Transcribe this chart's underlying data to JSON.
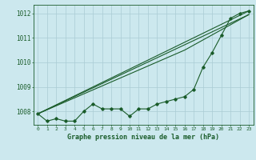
{
  "title": "Graphe pression niveau de la mer (hPa)",
  "xlim": [
    -0.5,
    23.5
  ],
  "ylim": [
    1007.45,
    1012.35
  ],
  "yticks": [
    1008,
    1009,
    1010,
    1011,
    1012
  ],
  "xticks": [
    0,
    1,
    2,
    3,
    4,
    5,
    6,
    7,
    8,
    9,
    10,
    11,
    12,
    13,
    14,
    15,
    16,
    17,
    18,
    19,
    20,
    21,
    22,
    23
  ],
  "bg_color": "#cce8ee",
  "grid_color": "#aaccd4",
  "line_color": "#1a5c2a",
  "line1_x": [
    0,
    1,
    2,
    3,
    4,
    5,
    6,
    7,
    8,
    9,
    10,
    11,
    12,
    13,
    14,
    15,
    16,
    17,
    18,
    19,
    20,
    21,
    22,
    23
  ],
  "line1_y": [
    1007.9,
    1007.6,
    1007.7,
    1007.6,
    1007.6,
    1008.0,
    1008.3,
    1008.1,
    1008.1,
    1008.1,
    1007.8,
    1008.1,
    1008.1,
    1008.3,
    1008.4,
    1008.5,
    1008.6,
    1008.9,
    1009.8,
    1010.4,
    1011.1,
    1011.8,
    1012.0,
    1012.1
  ],
  "line2_x": [
    0,
    23
  ],
  "line2_y": [
    1007.9,
    1012.1
  ],
  "line3_x": [
    0,
    23
  ],
  "line3_y": [
    1007.9,
    1011.95
  ],
  "line4_x": [
    0,
    16,
    23
  ],
  "line4_y": [
    1007.9,
    1010.5,
    1011.95
  ]
}
